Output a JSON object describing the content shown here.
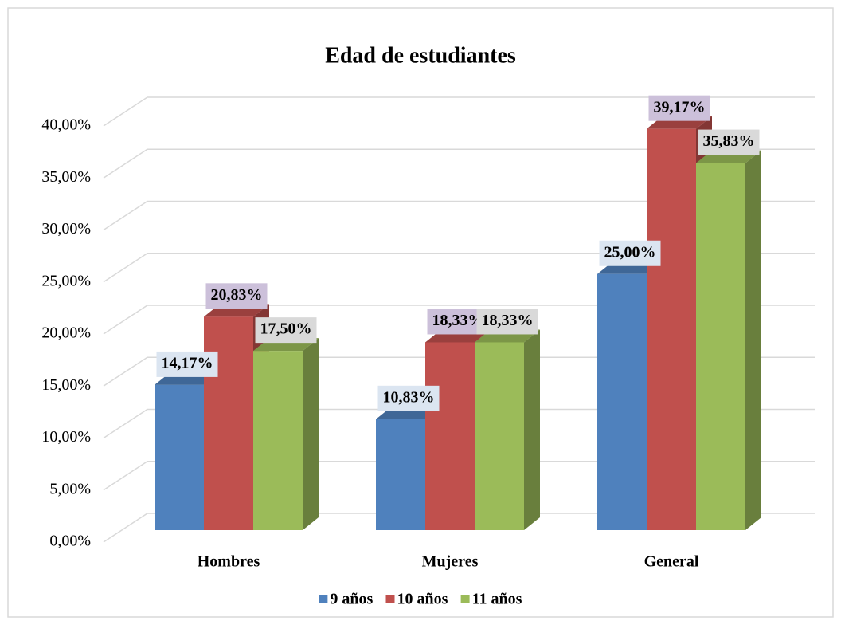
{
  "chart_data": {
    "type": "bar",
    "title": "Edad de estudiantes",
    "categories": [
      "Hombres",
      "Mujeres",
      "General"
    ],
    "series": [
      {
        "name": "9 años",
        "color": "#4f81bd",
        "values": [
          14.17,
          10.83,
          25.0
        ],
        "value_labels": [
          "14,17%",
          "10,83%",
          "25,00%"
        ]
      },
      {
        "name": "10 años",
        "color": "#c0504d",
        "values": [
          20.83,
          18.33,
          39.17
        ],
        "value_labels": [
          "20,83%",
          "18,33%",
          "39,17%"
        ]
      },
      {
        "name": "11 años",
        "color": "#9bbb59",
        "values": [
          17.5,
          18.33,
          35.83
        ],
        "value_labels": [
          "17,50%",
          "18,33%",
          "35,83%"
        ]
      }
    ],
    "ylim": [
      0,
      40
    ],
    "yticks": [
      {
        "value": 0,
        "label": "0,00%"
      },
      {
        "value": 5,
        "label": "5,00%"
      },
      {
        "value": 10,
        "label": "10,00%"
      },
      {
        "value": 15,
        "label": "15,00%"
      },
      {
        "value": 20,
        "label": "20,00%"
      },
      {
        "value": 25,
        "label": "25,00%"
      },
      {
        "value": 30,
        "label": "30,00%"
      },
      {
        "value": 35,
        "label": "35,00%"
      },
      {
        "value": 40,
        "label": "40,00%"
      }
    ],
    "grid": true,
    "legend": "bottom"
  }
}
